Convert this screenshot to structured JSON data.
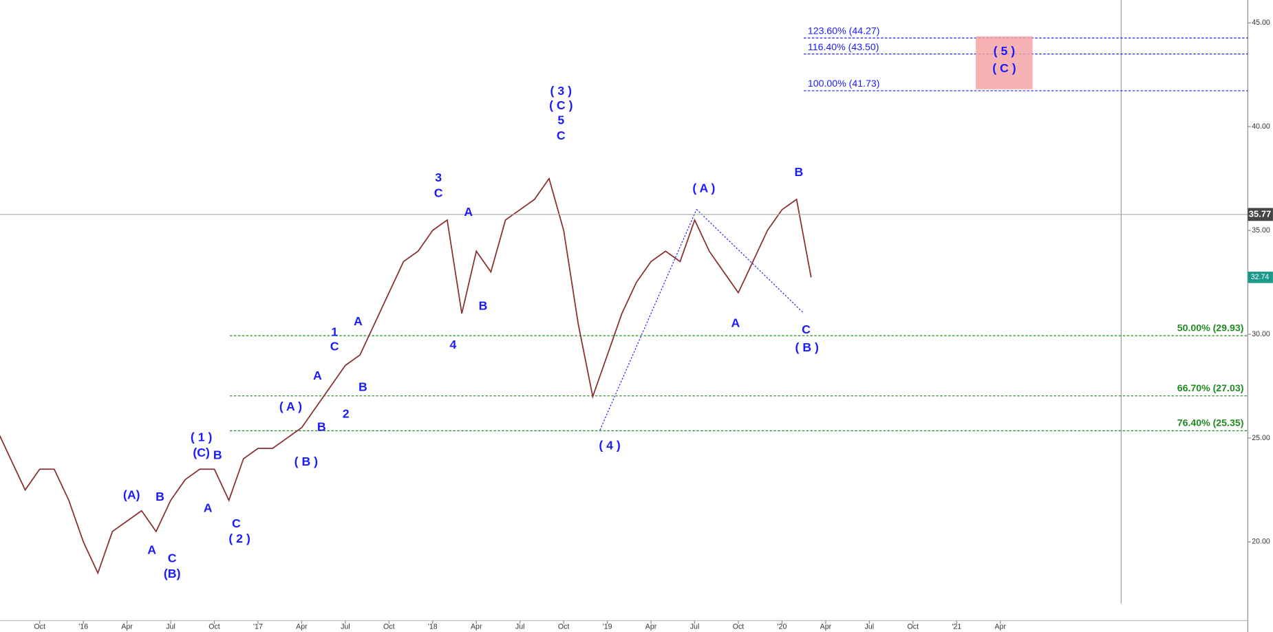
{
  "chart_data": {
    "type": "line",
    "color": "#8b2e2e",
    "x": [
      "2015-07",
      "2015-08",
      "2015-09",
      "2015-10",
      "2015-11",
      "2015-12",
      "2016-01",
      "2016-02",
      "2016-03",
      "2016-04",
      "2016-05",
      "2016-06",
      "2016-07",
      "2016-08",
      "2016-09",
      "2016-10",
      "2016-11",
      "2016-12",
      "2017-01",
      "2017-02",
      "2017-03",
      "2017-04",
      "2017-05",
      "2017-06",
      "2017-07",
      "2017-08",
      "2017-09",
      "2017-10",
      "2017-11",
      "2017-12",
      "2018-01",
      "2018-02",
      "2018-03",
      "2018-04",
      "2018-05",
      "2018-06",
      "2018-07",
      "2018-08",
      "2018-09",
      "2018-10",
      "2018-11",
      "2018-12",
      "2019-01",
      "2019-02",
      "2019-03",
      "2019-04",
      "2019-05",
      "2019-06",
      "2019-07",
      "2019-08",
      "2019-09",
      "2019-10",
      "2019-11",
      "2019-12",
      "2020-01",
      "2020-02",
      "2020-03"
    ],
    "values": [
      25.5,
      24,
      22.5,
      23.5,
      23.5,
      22,
      20,
      18.5,
      20.5,
      21,
      21.5,
      20.5,
      22,
      23,
      23.5,
      23.5,
      22,
      24,
      24.5,
      24.5,
      25,
      25.5,
      26.5,
      27.5,
      28.5,
      29,
      30.5,
      32,
      33.5,
      34,
      35,
      35.5,
      31,
      34,
      33,
      35.5,
      36,
      36.5,
      37.5,
      35,
      30.5,
      27,
      29,
      31,
      32.5,
      33.5,
      34,
      33.5,
      35.5,
      34,
      33,
      32,
      33.5,
      35,
      36,
      36.5,
      32.74
    ],
    "xlim": [
      "2015-07",
      "2022-09"
    ],
    "ylim": [
      16.4,
      46.1
    ],
    "xticks": [
      {
        "value": "2015-10",
        "label": "Oct"
      },
      {
        "value": "2016-01",
        "label": "'16"
      },
      {
        "value": "2016-04",
        "label": "Apr"
      },
      {
        "value": "2016-07",
        "label": "Jul"
      },
      {
        "value": "2016-10",
        "label": "Oct"
      },
      {
        "value": "2017-01",
        "label": "'17"
      },
      {
        "value": "2017-04",
        "label": "Apr"
      },
      {
        "value": "2017-07",
        "label": "Jul"
      },
      {
        "value": "2017-10",
        "label": "Oct"
      },
      {
        "value": "2018-01",
        "label": "'18"
      },
      {
        "value": "2018-04",
        "label": "Apr"
      },
      {
        "value": "2018-07",
        "label": "Jul"
      },
      {
        "value": "2018-10",
        "label": "Oct"
      },
      {
        "value": "2019-01",
        "label": "'19"
      },
      {
        "value": "2019-04",
        "label": "Apr"
      },
      {
        "value": "2019-07",
        "label": "Jul"
      },
      {
        "value": "2019-10",
        "label": "Oct"
      },
      {
        "value": "2020-01",
        "label": "'20"
      },
      {
        "value": "2020-04",
        "label": "Apr"
      },
      {
        "value": "2020-07",
        "label": "Jul"
      },
      {
        "value": "2020-10",
        "label": "Oct"
      },
      {
        "value": "2021-01",
        "label": "'21"
      },
      {
        "value": "2021-04",
        "label": "Apr"
      }
    ],
    "yticks": [
      {
        "value": 20,
        "label": "20.00"
      },
      {
        "value": 25,
        "label": "25.00"
      },
      {
        "value": 30,
        "label": "30.00"
      },
      {
        "value": 35,
        "label": "35.00"
      },
      {
        "value": 40,
        "label": "40.00"
      },
      {
        "value": 45,
        "label": "45.00"
      }
    ],
    "fib_levels": [
      {
        "label": "123.60% (44.27)",
        "value": 44.27,
        "color": "#1a1aff"
      },
      {
        "label": "116.40% (43.50)",
        "value": 43.5,
        "color": "#1a1aff"
      },
      {
        "label": "100.00% (41.73)",
        "value": 41.73,
        "color": "#1a1aff"
      },
      {
        "label": "50.00% (29.93)",
        "value": 29.93,
        "color": "#1f8a1f"
      },
      {
        "label": "66.70% (27.03)",
        "value": 27.03,
        "color": "#1f8a1f"
      },
      {
        "label": "76.40% (25.35)",
        "value": 25.35,
        "color": "#1f8a1f"
      }
    ],
    "target_zone": {
      "labels": [
        "( 5 )",
        "( C )"
      ],
      "ylim": [
        41.8,
        44.35
      ],
      "color": "#f4a6a6"
    },
    "last_price": {
      "label": "32.74",
      "value": 32.74,
      "color": "#1a9a8a"
    },
    "crosshair": {
      "label": "35.77",
      "value": 35.77
    },
    "annotations": [
      "( 3 )",
      "( C )",
      "5",
      "C",
      "3",
      "C",
      "A",
      "B",
      "4",
      "1",
      "C",
      "A",
      "B",
      "A",
      "2",
      "( A )",
      "B",
      "( B )",
      "( 1 )",
      "(C)",
      "B",
      "A",
      "C",
      "( 2 )",
      "(A)",
      "B",
      "A",
      "C",
      "(B)",
      "( 4 )",
      "( A )",
      "A",
      "B",
      "C",
      "( B )"
    ]
  }
}
